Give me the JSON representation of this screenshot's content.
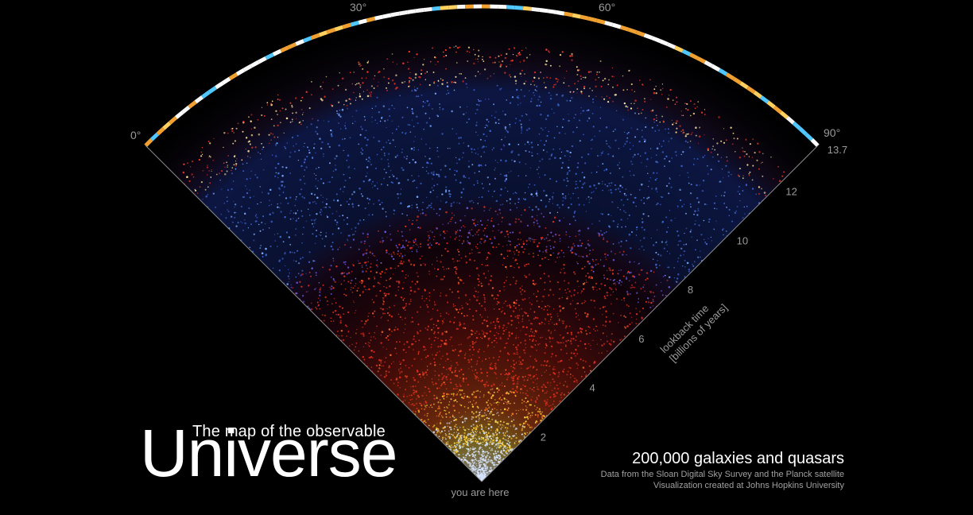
{
  "angle_labels": [
    "0°",
    "30°",
    "60°",
    "90°"
  ],
  "lookback_axis": {
    "title_line1": "lookback time",
    "title_line2": "[billions of years]",
    "ticks": [
      {
        "label": "2",
        "value": 2
      },
      {
        "label": "4",
        "value": 4
      },
      {
        "label": "6",
        "value": 6
      },
      {
        "label": "8",
        "value": 8
      },
      {
        "label": "10",
        "value": 10
      },
      {
        "label": "12",
        "value": 12
      },
      {
        "label": "13.7",
        "value": 13.7
      }
    ],
    "max": 13.7
  },
  "origin_label": "you are here",
  "title": {
    "line1": "The map of the observable",
    "line2": "Universe"
  },
  "info": {
    "headline": "200,000 galaxies and quasars",
    "credit1": "Data from the Sloan Digital Sky Survey and the Planck satellite",
    "credit2": "Visualization created at Johns Hopkins University"
  },
  "colors": {
    "background": "#000000",
    "near_galaxies": "#d8e6ff",
    "mid_yellow": "#ffd23c",
    "red_galaxies": "#e0301e",
    "quasars_blue": "#3c64d2",
    "cmb_orange": "#f0a030",
    "cmb_cyan": "#50c8ff",
    "label_gray": "#9a9a9a"
  }
}
